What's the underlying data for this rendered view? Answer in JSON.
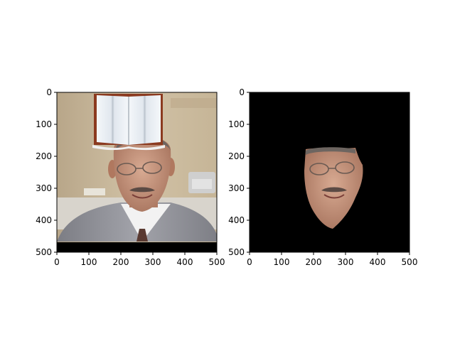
{
  "chart_data": [
    {
      "type": "image",
      "content": "photo of a man in a suit with an open book image overlaid on top of his head",
      "xlim": [
        0,
        500
      ],
      "ylim": [
        500,
        0
      ],
      "xticks": [
        "0",
        "100",
        "200",
        "300",
        "400",
        "500"
      ],
      "yticks": [
        "0",
        "100",
        "200",
        "300",
        "400",
        "500"
      ]
    },
    {
      "type": "image",
      "content": "segmented face region of the same man on a black background",
      "xlim": [
        0,
        500
      ],
      "ylim": [
        500,
        0
      ],
      "xticks": [
        "0",
        "100",
        "200",
        "300",
        "400",
        "500"
      ],
      "yticks": [
        "0",
        "100",
        "200",
        "300",
        "400",
        "500"
      ]
    }
  ],
  "colors": {
    "background": "#ffffff",
    "mask_background": "#000000",
    "skin": "#c99a82",
    "suit": "#8e8f96",
    "wall": "#c9b89a",
    "book_cover": "#8b3a1f",
    "book_pages": "#e8edf2"
  }
}
